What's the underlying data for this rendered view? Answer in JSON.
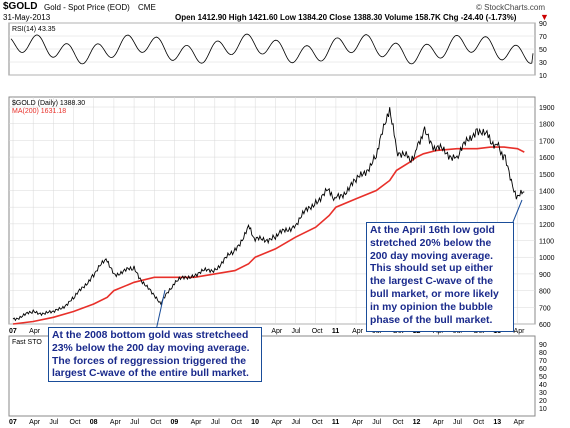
{
  "header": {
    "symbol": "$GOLD",
    "description": "Gold - Spot Price (EOD)",
    "exchange": "CME",
    "watermark": "© StockCharts.com",
    "date": "31-May-2013",
    "ohlc": "Open 1412.90  High 1421.60  Low 1384.20  Close 1388.30  Volume 158.7K  Chg -24.40 (-1.73%)",
    "chg_arrow": "▼"
  },
  "panels": {
    "rsi_label": "RSI(14) 43.35",
    "price_label": "$GOLD (Daily) 1388.30",
    "ma_label": "MA(200) 1631.18",
    "bottom_label": "Fast STO"
  },
  "callouts": {
    "left": [
      "At the 2008 bottom gold was stretcheed",
      "23% below the 200 day moving average.",
      "The forces of reggression triggered the",
      "largest C-wave of the entire bull market."
    ],
    "right": [
      "At the April 16th low gold",
      "stretched 20% below the",
      "200 day moving average.",
      "This should set up either",
      "the largest C-wave of the",
      "bull market, or more likely",
      "in my opinion the bubble",
      "phase of the bull market."
    ]
  },
  "colors": {
    "price": "#000000",
    "ma": "#e8302a",
    "grid": "#d8d8d8",
    "callout_text": "#1a2a8c",
    "callout_border": "#1a4d99"
  },
  "chart_data": {
    "type": "line",
    "title": "$GOLD (Daily) 1388.30",
    "ylim": [
      600,
      1960
    ],
    "yticks": [
      600,
      700,
      800,
      900,
      1000,
      1100,
      1200,
      1300,
      1400,
      1500,
      1600,
      1700,
      1800,
      1900
    ],
    "xticks": [
      "07",
      "Apr",
      "Jul",
      "Oct",
      "08",
      "Apr",
      "Jul",
      "Oct",
      "09",
      "Apr",
      "Jul",
      "Oct",
      "10",
      "Apr",
      "Jul",
      "Oct",
      "11",
      "Apr",
      "Jul",
      "Oct",
      "12",
      "Apr",
      "Jul",
      "Oct",
      "13",
      "Apr"
    ],
    "x": [
      "2007-01",
      "2007-04",
      "2007-07",
      "2007-10",
      "2008-01",
      "2008-03",
      "2008-04",
      "2008-07",
      "2008-10",
      "2008-11",
      "2009-01",
      "2009-04",
      "2009-07",
      "2009-10",
      "2009-12",
      "2010-01",
      "2010-04",
      "2010-07",
      "2010-10",
      "2010-12",
      "2011-01",
      "2011-04",
      "2011-07",
      "2011-09",
      "2011-10",
      "2011-12",
      "2012-01",
      "2012-02",
      "2012-04",
      "2012-07",
      "2012-10",
      "2012-12",
      "2013-01",
      "2013-02",
      "2013-04",
      "2013-05"
    ],
    "series": [
      {
        "name": "$GOLD (Daily) 1388.30",
        "values": [
          630,
          670,
          665,
          750,
          900,
          990,
          900,
          930,
          760,
          720,
          850,
          900,
          930,
          1040,
          1180,
          1100,
          1120,
          1200,
          1340,
          1400,
          1350,
          1450,
          1600,
          1900,
          1650,
          1580,
          1650,
          1750,
          1650,
          1600,
          1780,
          1700,
          1680,
          1600,
          1350,
          1390
        ]
      },
      {
        "name": "MA(200) 1631.18",
        "values": [
          600,
          615,
          640,
          675,
          720,
          760,
          800,
          850,
          880,
          880,
          880,
          880,
          900,
          920,
          960,
          1000,
          1050,
          1120,
          1180,
          1250,
          1300,
          1350,
          1400,
          1460,
          1520,
          1570,
          1600,
          1620,
          1640,
          1650,
          1650,
          1660,
          1660,
          1660,
          1650,
          1630
        ]
      }
    ],
    "rsi": {
      "ylim": [
        10,
        90
      ],
      "yticks": [
        10,
        30,
        50,
        70,
        90
      ],
      "last": 43.35
    },
    "annotations": [
      {
        "text": "At the 2008 bottom gold was stretcheed 23% below the 200 day moving average.",
        "x": "2008-10"
      },
      {
        "text": "At the April 16th low gold stretched 20% below the 200 day moving average.",
        "x": "2013-04"
      }
    ]
  }
}
